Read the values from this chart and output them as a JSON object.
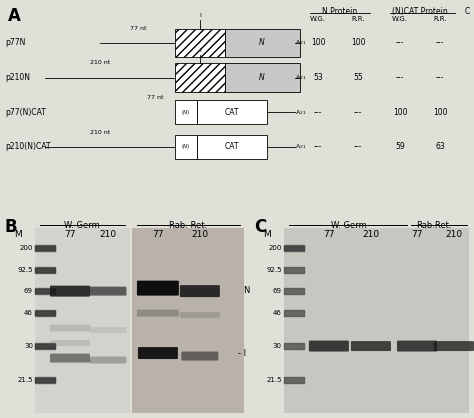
{
  "fig_bg": "#e0e0d8",
  "panel_A": {
    "constructs": [
      "p77N",
      "p210N",
      "p77(N)CAT",
      "p210(N)CAT"
    ],
    "col_headers": [
      "W.G.",
      "R.R.",
      "W.G.",
      "R.R."
    ],
    "values": [
      [
        "100",
        "100",
        "---",
        "---"
      ],
      [
        "53",
        "55",
        "---",
        "---"
      ],
      [
        "---",
        "---",
        "100",
        "100"
      ],
      [
        "---",
        "---",
        "59",
        "63"
      ]
    ]
  },
  "panel_B": {
    "markers": {
      "200": 0.87,
      "92.5": 0.76,
      "69": 0.65,
      "46": 0.53,
      "30": 0.36,
      "21.5": 0.18
    },
    "gel_bg_left": "#d4d2cc",
    "gel_bg_right": "#b8b2aa"
  },
  "panel_C": {
    "markers": {
      "200": 0.87,
      "92.5": 0.76,
      "69": 0.65,
      "46": 0.53,
      "30": 0.36,
      "21.5": 0.18
    },
    "gel_bg": "#c8c6c0"
  }
}
